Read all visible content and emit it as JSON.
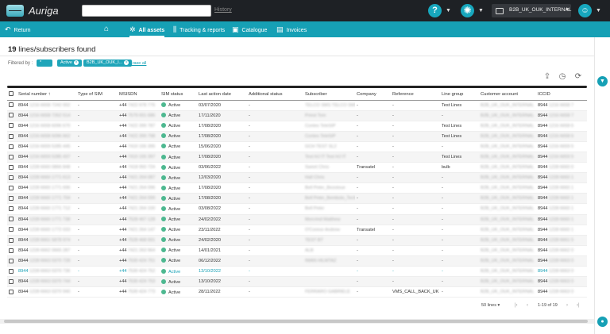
{
  "app": {
    "brand": "Auriga"
  },
  "header": {
    "search_placeholder": "",
    "history_label": "History",
    "help_glyph": "?",
    "tenant_label": "B2B_UK_OUK_INTERNAL"
  },
  "nav": {
    "return_label": "Return",
    "items": [
      {
        "label": "All assets",
        "icon": "asset-icon",
        "active": true
      },
      {
        "label": "Tracking & reports",
        "icon": "tracking-icon",
        "active": false
      },
      {
        "label": "Catalogue",
        "icon": "catalogue-icon",
        "active": false
      },
      {
        "label": "Invoices",
        "icon": "invoice-icon",
        "active": false
      }
    ]
  },
  "summary": {
    "count": "19",
    "suffix": " lines/subscribers found"
  },
  "filters": {
    "label": "Filtered by :",
    "chips": [
      "*",
      "Active",
      "B2B_UK_OUK_I..."
    ],
    "erase_label": "Erase all"
  },
  "table": {
    "columns": [
      "Serial number",
      "Type of SIM",
      "MSISDN",
      "SIM status",
      "Last action date",
      "Additional status",
      "Subscriber",
      "Company",
      "Reference",
      "Line group",
      "Customer account",
      "ICCID"
    ],
    "rows": [
      {
        "serial": "8944 1216 6658 7242 002",
        "type": "-",
        "msisdn": "+44 7422 978 776",
        "status": "Active",
        "date": "03/07/2020",
        "add": "-",
        "subscriber": "TELCO SMS TELCO SMS",
        "company": "-",
        "reference": "-",
        "group": "Test Lines",
        "account": "B2B_UK_OUK_INTERNAL",
        "iccid": "8944 1216 6658 7"
      },
      {
        "serial": "8944 1216 6658 7262 514",
        "type": "-",
        "msisdn": "+44 7579 001 686",
        "status": "Active",
        "date": "17/11/2020",
        "add": "-",
        "subscriber": "Priest Tom",
        "company": "-",
        "reference": "-",
        "group": "-",
        "account": "B2B_UK_OUK_INTERNAL",
        "iccid": "8944 1216 6658 7"
      },
      {
        "serial": "8944 1216 6658 6096 670",
        "type": "-",
        "msisdn": "+44 7422 399 787",
        "status": "Active",
        "date": "17/08/2020",
        "add": "-",
        "subscriber": "Contex TeleSIP",
        "company": "-",
        "reference": "-",
        "group": "Test Lines",
        "account": "B2B_UK_OUK_INTERNAL",
        "iccid": "8944 1216 6658 6"
      },
      {
        "serial": "8944 1216 6658 6096 662",
        "type": "-",
        "msisdn": "+44 7422 399 798",
        "status": "Active",
        "date": "17/08/2020",
        "add": "-",
        "subscriber": "Contex TeleSIP",
        "company": "-",
        "reference": "-",
        "group": "Test Lines",
        "account": "B2B_UK_OUK_INTERNAL",
        "iccid": "8944 1216 6658 6"
      },
      {
        "serial": "8944 1216 6659 5285 445",
        "type": "-",
        "msisdn": "+44 7410 155 395",
        "status": "Active",
        "date": "15/06/2020",
        "add": "-",
        "subscriber": "GCH TEST SL2",
        "company": "-",
        "reference": "-",
        "group": "-",
        "account": "B2B_UK_OUK_INTERNAL",
        "iccid": "8944 1216 6659 5"
      },
      {
        "serial": "8944 1216 6659 5285 437",
        "type": "-",
        "msisdn": "+44 7410 155 397",
        "status": "Active",
        "date": "17/08/2020",
        "add": "-",
        "subscriber": "Test HJ IT Test HJ IT",
        "company": "-",
        "reference": "-",
        "group": "Test Lines",
        "account": "B2B_UK_OUK_INTERNAL",
        "iccid": "8944 1216 6659 5"
      },
      {
        "serial": "8944 1228 6660 0866 848",
        "type": "-",
        "msisdn": "+44 7418 950 724",
        "status": "Active",
        "date": "03/06/2022",
        "add": "-",
        "subscriber": "Sweet Chris",
        "company": "Transatel",
        "reference": "-",
        "group": "bulb",
        "account": "B2B_UK_OUK_INTERNAL",
        "iccid": "8944 1228 6660 0"
      },
      {
        "serial": "8944 1228 6660 1771 613",
        "type": "-",
        "msisdn": "+44 7421 264 087",
        "status": "Active",
        "date": "12/03/2020",
        "add": "-",
        "subscriber": "Hall Chris",
        "company": "-",
        "reference": "-",
        "group": "-",
        "account": "B2B_UK_OUK_INTERNAL",
        "iccid": "8944 1228 6660 1"
      },
      {
        "serial": "8944 1228 6660 1771 696",
        "type": "-",
        "msisdn": "+44 7421 264 096",
        "status": "Active",
        "date": "17/08/2020",
        "add": "-",
        "subscriber": "Bell Peter_Bezoloue",
        "company": "-",
        "reference": "-",
        "group": "-",
        "account": "B2B_UK_OUK_INTERNAL",
        "iccid": "8944 1228 6660 1"
      },
      {
        "serial": "8944 1228 6660 1771 704",
        "type": "-",
        "msisdn": "+44 7421 264 099",
        "status": "Active",
        "date": "17/08/2020",
        "add": "-",
        "subscriber": "Bell Peter_Bembolo_Technology",
        "company": "-",
        "reference": "-",
        "group": "-",
        "account": "B2B_UK_OUK_INTERNAL",
        "iccid": "8944 1228 6660 1"
      },
      {
        "serial": "8944 1228 6660 1771 712",
        "type": "-",
        "msisdn": "+44 7421 264 100",
        "status": "Active",
        "date": "03/08/2022",
        "add": "-",
        "subscriber": "Bell Peter",
        "company": "-",
        "reference": "-",
        "group": "-",
        "account": "B2B_UK_OUK_INTERNAL",
        "iccid": "8944 1228 6660 1"
      },
      {
        "serial": "8944 1228 6660 1771 738",
        "type": "-",
        "msisdn": "+44 7528 467 128",
        "status": "Active",
        "date": "24/02/2022",
        "add": "-",
        "subscriber": "Morcrind Matthew",
        "company": "-",
        "reference": "-",
        "group": "-",
        "account": "B2B_UK_OUK_INTERNAL",
        "iccid": "8944 1228 6660 1"
      },
      {
        "serial": "8944 1228 6660 1772 033",
        "type": "-",
        "msisdn": "+44 7421 264 147",
        "status": "Active",
        "date": "23/11/2022",
        "add": "-",
        "subscriber": "O'Connor Andrew",
        "company": "Transatel",
        "reference": "-",
        "group": "-",
        "account": "B2B_UK_OUK_INTERNAL",
        "iccid": "8944 1228 6660 1"
      },
      {
        "serial": "8944 1228 6661 5878 974",
        "type": "-",
        "msisdn": "+44 7528 468 001",
        "status": "Active",
        "date": "24/02/2020",
        "add": "-",
        "subscriber": "TEST BT",
        "company": "-",
        "reference": "-",
        "group": "-",
        "account": "B2B_UK_OUK_INTERNAL",
        "iccid": "8944 1228 6661 5"
      },
      {
        "serial": "8944 1228 6662 0665 287",
        "type": "-",
        "msisdn": "+44 7421 263 964",
        "status": "Active",
        "date": "14/01/2021",
        "add": "-",
        "subscriber": "ALB",
        "company": "-",
        "reference": "-",
        "group": "-",
        "account": "B2B_UK_OUK_INTERNAL",
        "iccid": "8944 1228 6662 0"
      },
      {
        "serial": "8944 1228 6663 0370 728",
        "type": "-",
        "msisdn": "+44 7530 424 751",
        "status": "Active",
        "date": "06/12/2022",
        "add": "-",
        "subscriber": "IWAN HILMTAZ",
        "company": "-",
        "reference": "-",
        "group": "-",
        "account": "B2B_UK_OUK_INTERNAL",
        "iccid": "8944 1228 6663 0"
      },
      {
        "serial": "8944 1228 6663 0370 736",
        "type": "-",
        "msisdn": "+44 7530 424 752",
        "status": "Active",
        "date": "13/10/2022",
        "add": "-",
        "subscriber": "",
        "company": "-",
        "reference": "-",
        "group": "-",
        "account": "B2B_UK_OUK_INTERNAL",
        "iccid": "8944 1228 6663 0"
      },
      {
        "serial": "8944 1228 6663 0370 744",
        "type": "-",
        "msisdn": "+44 7530 424 753",
        "status": "Active",
        "date": "13/10/2022",
        "add": "-",
        "subscriber": "",
        "company": "-",
        "reference": "-",
        "group": "-",
        "account": "B2B_UK_OUK_INTERNAL",
        "iccid": "8944 1228 6663 0"
      },
      {
        "serial": "8944 1228 6663 0370 940",
        "type": "-",
        "msisdn": "+44 7530 424 773",
        "status": "Active",
        "date": "28/11/2022",
        "add": "-",
        "subscriber": "FERRARO GABRIELE",
        "company": "-",
        "reference": "VMS_CALL_BACK_UK",
        "group": "-",
        "account": "B2B_UK_OUK_INTERNAL",
        "iccid": "8944 1228 6663 0"
      }
    ]
  },
  "pagination": {
    "page_size": "50 lines",
    "range": "1-19 of 19"
  },
  "colors": {
    "accent": "#16a0b5",
    "topbar": "#1e2125",
    "active_dot": "#4db890"
  }
}
